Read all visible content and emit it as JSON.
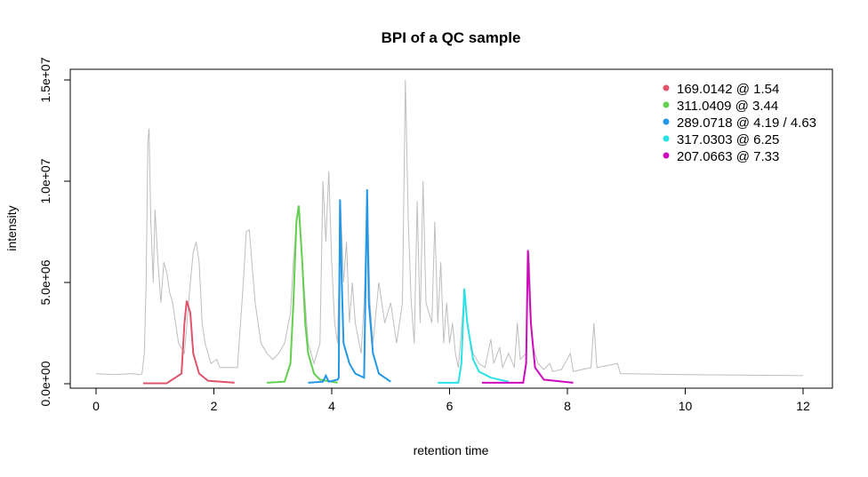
{
  "chart_data": {
    "type": "line",
    "title": "BPI of a QC sample",
    "xlabel": "retention time",
    "ylabel": "intensity",
    "xlim": [
      -0.4,
      12.5
    ],
    "ylim": [
      -100000.0,
      15500000.0
    ],
    "x_ticks": [
      0,
      2,
      4,
      6,
      8,
      10,
      12
    ],
    "x_tick_labels": [
      "0",
      "2",
      "4",
      "6",
      "8",
      "10",
      "12"
    ],
    "y_ticks": [
      0,
      5000000,
      10000000,
      15000000
    ],
    "y_tick_labels": [
      "0.0e+00",
      "5.0e+06",
      "1.0e+07",
      "1.5e+07"
    ],
    "grid": false,
    "legend_position": "top-right",
    "bpi": {
      "name": "BPI",
      "color": "#bebebe",
      "points_millions": [
        [
          0,
          0.5
        ],
        [
          0.3,
          0.45
        ],
        [
          0.6,
          0.5
        ],
        [
          0.75,
          0.45
        ],
        [
          0.78,
          0.5
        ],
        [
          0.82,
          1.5
        ],
        [
          0.85,
          5
        ],
        [
          0.88,
          12
        ],
        [
          0.9,
          12.6
        ],
        [
          0.93,
          8
        ],
        [
          0.97,
          5
        ],
        [
          1.0,
          8.6
        ],
        [
          1.05,
          6
        ],
        [
          1.1,
          4
        ],
        [
          1.15,
          6
        ],
        [
          1.2,
          5.5
        ],
        [
          1.25,
          4.5
        ],
        [
          1.3,
          4
        ],
        [
          1.35,
          3
        ],
        [
          1.4,
          2
        ],
        [
          1.5,
          1.5
        ],
        [
          1.6,
          5
        ],
        [
          1.65,
          6.5
        ],
        [
          1.7,
          7
        ],
        [
          1.75,
          6
        ],
        [
          1.8,
          3
        ],
        [
          1.85,
          2
        ],
        [
          1.9,
          1.5
        ],
        [
          1.95,
          1
        ],
        [
          2.05,
          1.2
        ],
        [
          2.1,
          0.8
        ],
        [
          2.4,
          0.8
        ],
        [
          2.5,
          5
        ],
        [
          2.55,
          7.5
        ],
        [
          2.6,
          7.6
        ],
        [
          2.7,
          4
        ],
        [
          2.8,
          2
        ],
        [
          2.9,
          1.5
        ],
        [
          3.0,
          1.2
        ],
        [
          3.1,
          1.5
        ],
        [
          3.2,
          2.0
        ],
        [
          3.3,
          3.5
        ],
        [
          3.35,
          6
        ],
        [
          3.4,
          8
        ],
        [
          3.45,
          8.6
        ],
        [
          3.5,
          6
        ],
        [
          3.6,
          2
        ],
        [
          3.7,
          1
        ],
        [
          3.8,
          2
        ],
        [
          3.85,
          10
        ],
        [
          3.9,
          7
        ],
        [
          3.95,
          10.5
        ],
        [
          4.0,
          6
        ],
        [
          4.05,
          3
        ],
        [
          4.1,
          2
        ],
        [
          4.15,
          9
        ],
        [
          4.2,
          5
        ],
        [
          4.25,
          7
        ],
        [
          4.3,
          3
        ],
        [
          4.35,
          5
        ],
        [
          4.4,
          3
        ],
        [
          4.5,
          1.5
        ],
        [
          4.55,
          4
        ],
        [
          4.6,
          9.5
        ],
        [
          4.65,
          4
        ],
        [
          4.7,
          2
        ],
        [
          4.8,
          5
        ],
        [
          4.9,
          3
        ],
        [
          5.0,
          4
        ],
        [
          5.1,
          2
        ],
        [
          5.2,
          4
        ],
        [
          5.25,
          15
        ],
        [
          5.3,
          8
        ],
        [
          5.35,
          4
        ],
        [
          5.4,
          2
        ],
        [
          5.45,
          9
        ],
        [
          5.5,
          3
        ],
        [
          5.55,
          10
        ],
        [
          5.6,
          4
        ],
        [
          5.7,
          3
        ],
        [
          5.75,
          8
        ],
        [
          5.8,
          3
        ],
        [
          5.85,
          6
        ],
        [
          5.9,
          2
        ],
        [
          5.95,
          4
        ],
        [
          6.0,
          2
        ],
        [
          6.05,
          3
        ],
        [
          6.1,
          1.5
        ],
        [
          6.15,
          0.8
        ],
        [
          6.25,
          4.5
        ],
        [
          6.3,
          3
        ],
        [
          6.4,
          1.5
        ],
        [
          6.5,
          1
        ],
        [
          6.6,
          0.8
        ],
        [
          6.7,
          2.2
        ],
        [
          6.75,
          1
        ],
        [
          6.85,
          1.8
        ],
        [
          6.9,
          0.8
        ],
        [
          7.0,
          1.5
        ],
        [
          7.1,
          0.8
        ],
        [
          7.15,
          3
        ],
        [
          7.2,
          1.2
        ],
        [
          7.3,
          1.5
        ],
        [
          7.35,
          6.5
        ],
        [
          7.4,
          2
        ],
        [
          7.5,
          1
        ],
        [
          7.6,
          0.7
        ],
        [
          7.7,
          1
        ],
        [
          7.75,
          0.6
        ],
        [
          7.9,
          0.7
        ],
        [
          8.05,
          1.5
        ],
        [
          8.1,
          0.6
        ],
        [
          8.4,
          0.8
        ],
        [
          8.45,
          3
        ],
        [
          8.5,
          0.8
        ],
        [
          8.85,
          1
        ],
        [
          8.9,
          0.5
        ],
        [
          10,
          0.45
        ],
        [
          12,
          0.4
        ]
      ]
    },
    "series": [
      {
        "name": "169.0142 @ 1.54",
        "color": "#df536b",
        "points_millions": [
          [
            0.8,
            0.02
          ],
          [
            1.2,
            0.02
          ],
          [
            1.45,
            0.5
          ],
          [
            1.5,
            3
          ],
          [
            1.54,
            4.1
          ],
          [
            1.6,
            3.5
          ],
          [
            1.65,
            1.5
          ],
          [
            1.75,
            0.5
          ],
          [
            1.9,
            0.15
          ],
          [
            2.35,
            0.05
          ]
        ]
      },
      {
        "name": "311.0409 @ 3.44",
        "color": "#61d04f",
        "points_millions": [
          [
            2.9,
            0.05
          ],
          [
            3.2,
            0.1
          ],
          [
            3.3,
            1
          ],
          [
            3.35,
            4
          ],
          [
            3.4,
            8
          ],
          [
            3.44,
            8.8
          ],
          [
            3.5,
            6
          ],
          [
            3.55,
            3
          ],
          [
            3.6,
            1.5
          ],
          [
            3.7,
            0.5
          ],
          [
            3.8,
            0.2
          ],
          [
            4.1,
            0.05
          ]
        ]
      },
      {
        "name": "289.0718 @ 4.19 / 4.63",
        "color": "#2297e6",
        "points_millions": [
          [
            3.6,
            0.05
          ],
          [
            3.85,
            0.1
          ],
          [
            3.9,
            0.4
          ],
          [
            3.95,
            0.1
          ],
          [
            4.1,
            0.2
          ],
          [
            4.12,
            0.3
          ],
          [
            4.14,
            9.1
          ],
          [
            4.17,
            5
          ],
          [
            4.2,
            2
          ],
          [
            4.3,
            1
          ],
          [
            4.4,
            0.5
          ],
          [
            4.55,
            0.3
          ],
          [
            4.6,
            9.6
          ],
          [
            4.63,
            4
          ],
          [
            4.7,
            1.5
          ],
          [
            4.8,
            0.5
          ],
          [
            5.0,
            0.1
          ]
        ]
      },
      {
        "name": "317.0303 @ 6.25",
        "color": "#28e2e5",
        "points_millions": [
          [
            5.8,
            0.05
          ],
          [
            6.15,
            0.05
          ],
          [
            6.2,
            1
          ],
          [
            6.25,
            4.7
          ],
          [
            6.3,
            3
          ],
          [
            6.4,
            1.2
          ],
          [
            6.5,
            0.6
          ],
          [
            6.7,
            0.3
          ],
          [
            7.0,
            0.1
          ]
        ]
      },
      {
        "name": "207.0663 @ 7.33",
        "color": "#cd0bbc",
        "points_millions": [
          [
            6.55,
            0.05
          ],
          [
            7.25,
            0.05
          ],
          [
            7.3,
            1
          ],
          [
            7.33,
            6.6
          ],
          [
            7.38,
            3
          ],
          [
            7.45,
            0.8
          ],
          [
            7.6,
            0.2
          ],
          [
            8.1,
            0.05
          ]
        ]
      }
    ]
  }
}
